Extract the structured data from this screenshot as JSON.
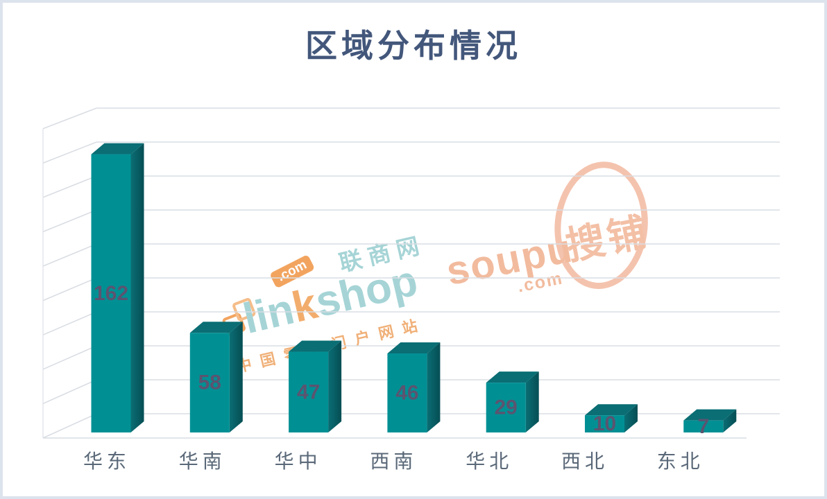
{
  "chart_data": {
    "type": "bar",
    "variant": "3d-column",
    "title": "区域分布情况",
    "categories": [
      "华东",
      "华南",
      "华中",
      "西南",
      "华北",
      "西北",
      "东北"
    ],
    "values": [
      162,
      58,
      47,
      46,
      29,
      10,
      7
    ],
    "xlabel": "",
    "ylabel": "",
    "ylim": [
      0,
      180
    ],
    "grid_step": 20,
    "grid": "horizontal-back-wall",
    "axis_tick_labels": "none",
    "legend_position": "none",
    "data_labels": "inside-center",
    "colors": {
      "bar_front": "#009094",
      "bar_top": "#0a6e74",
      "bar_side_light": "#0a6e74",
      "bar_side_dark": "#054e54",
      "value_label": "#5b5470",
      "category_label": "#5a6878",
      "title": "#43577b",
      "gridline": "#d9dde3",
      "wall_edge": "#e0e4e9"
    }
  },
  "watermarks": {
    "linkshop": {
      "brand": "linkshop",
      "brand_parts": {
        "pre": "lin",
        "mid": "k",
        "post": "shop"
      },
      "dot_com": ".com",
      "cn_name": "联商网",
      "tagline": "中国零售门户网站",
      "teal": "#a6d4d6",
      "orange": "#f2ad6d"
    },
    "soupu": {
      "brand": "soupu",
      "dot_com": ".com",
      "cn_name": "搜铺",
      "color": "#f2bb9e"
    }
  }
}
